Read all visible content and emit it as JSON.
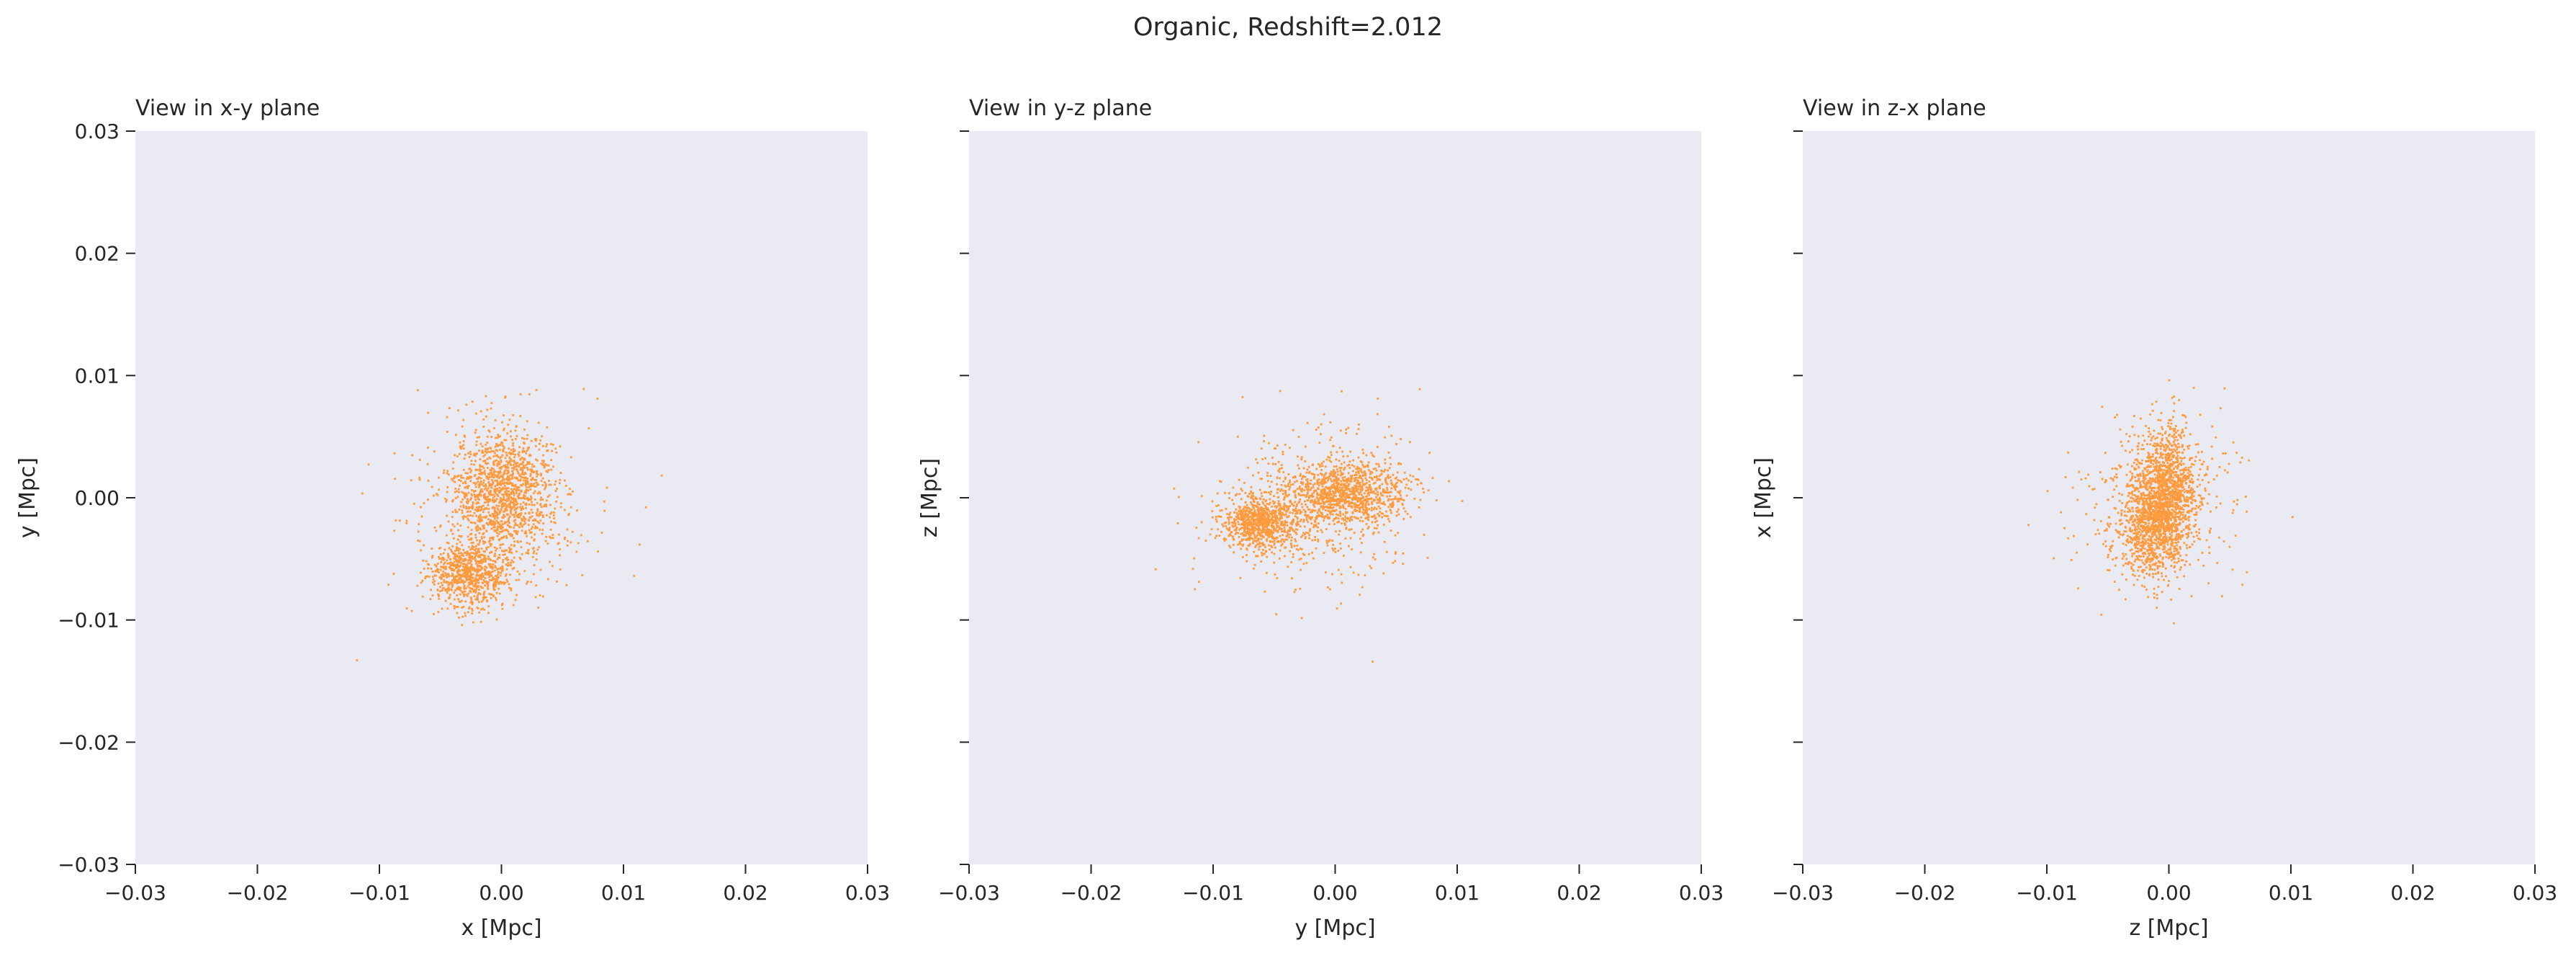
{
  "figure": {
    "suptitle": "Organic, Redshift=2.012"
  },
  "colors": {
    "axes_background": "#eaeaf2",
    "points": "#ff9a3c",
    "text": "#262626"
  },
  "chart_data": [
    {
      "type": "scatter",
      "title": "View in x-y plane",
      "xlabel": "x [Mpc]",
      "ylabel": "y [Mpc]",
      "xlim": [
        -0.03,
        0.03
      ],
      "ylim": [
        -0.03,
        0.03
      ],
      "xticks": [
        "−0.03",
        "−0.02",
        "−0.01",
        "0.00",
        "0.01",
        "0.02",
        "0.03"
      ],
      "yticks": [
        "−0.03",
        "−0.02",
        "−0.01",
        "0.00",
        "0.01",
        "0.02",
        "0.03"
      ],
      "show_ytick_labels": true,
      "grid": false,
      "series_description": "dense particle cloud; approximate cluster centers, spreads and counts",
      "clusters": [
        {
          "center": [
            0.0003,
            0.0006
          ],
          "spread": [
            0.002,
            0.0024
          ],
          "count": 1100
        },
        {
          "center": [
            -0.0026,
            -0.0062
          ],
          "spread": [
            0.0016,
            0.0013
          ],
          "count": 750
        },
        {
          "center": [
            -0.0005,
            -0.001
          ],
          "spread": [
            0.0036,
            0.004
          ],
          "count": 450
        }
      ]
    },
    {
      "type": "scatter",
      "title": "View in y-z plane",
      "xlabel": "y [Mpc]",
      "ylabel": "z [Mpc]",
      "xlim": [
        -0.03,
        0.03
      ],
      "ylim": [
        -0.03,
        0.03
      ],
      "xticks": [
        "−0.03",
        "−0.02",
        "−0.01",
        "0.00",
        "0.01",
        "0.02",
        "0.03"
      ],
      "yticks": [],
      "show_ytick_labels": false,
      "grid": false,
      "clusters": [
        {
          "center": [
            0.0008,
            0.0003
          ],
          "spread": [
            0.0026,
            0.0013
          ],
          "count": 1000
        },
        {
          "center": [
            -0.006,
            -0.002
          ],
          "spread": [
            0.0016,
            0.0011
          ],
          "count": 800
        },
        {
          "center": [
            -0.0015,
            -0.0008
          ],
          "spread": [
            0.0045,
            0.0035
          ],
          "count": 450
        }
      ]
    },
    {
      "type": "scatter",
      "title": "View in z-x plane",
      "xlabel": "z [Mpc]",
      "ylabel": "x [Mpc]",
      "xlim": [
        -0.03,
        0.03
      ],
      "ylim": [
        -0.03,
        0.03
      ],
      "xticks": [
        "−0.03",
        "−0.02",
        "−0.01",
        "0.00",
        "0.01",
        "0.02",
        "0.03"
      ],
      "yticks": [],
      "show_ytick_labels": false,
      "grid": false,
      "clusters": [
        {
          "center": [
            -0.0002,
            0.0002
          ],
          "spread": [
            0.0012,
            0.0028
          ],
          "count": 1100
        },
        {
          "center": [
            -0.0015,
            -0.0022
          ],
          "spread": [
            0.0013,
            0.0022
          ],
          "count": 700
        },
        {
          "center": [
            -0.001,
            -0.0005
          ],
          "spread": [
            0.003,
            0.0035
          ],
          "count": 450
        }
      ]
    }
  ]
}
